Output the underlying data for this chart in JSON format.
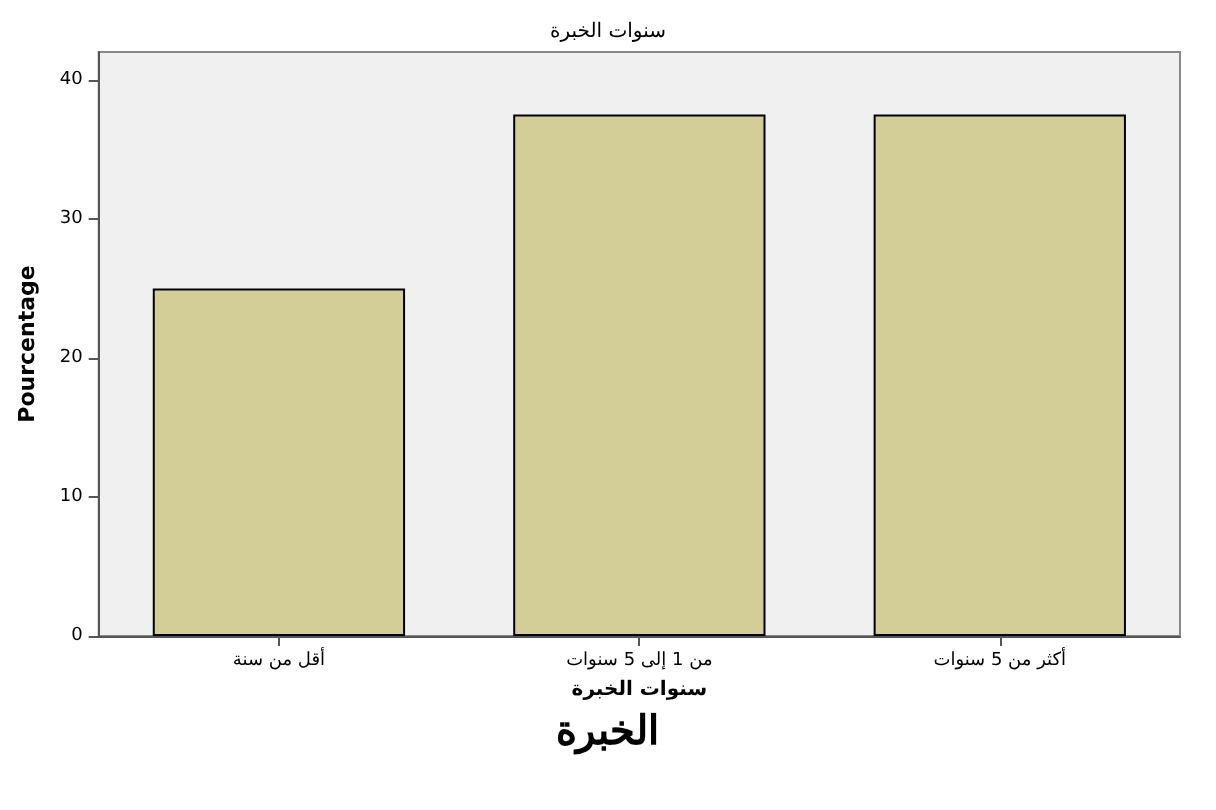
{
  "chart_data": {
    "type": "bar",
    "title": "سنوات الخبرة",
    "xlabel": "سنوات الخبرة",
    "ylabel": "Pourcentage",
    "categories": [
      "أقل من سنة",
      "من 1 إلى 5 سنوات",
      "أكثر من 5 سنوات"
    ],
    "values": [
      25,
      37.5,
      37.5
    ],
    "color": "#d3ce97",
    "ylim": [
      0,
      42
    ],
    "yticks": [
      0,
      10,
      20,
      30,
      40
    ],
    "grid": false,
    "annotations": [
      "الخبرة"
    ]
  }
}
